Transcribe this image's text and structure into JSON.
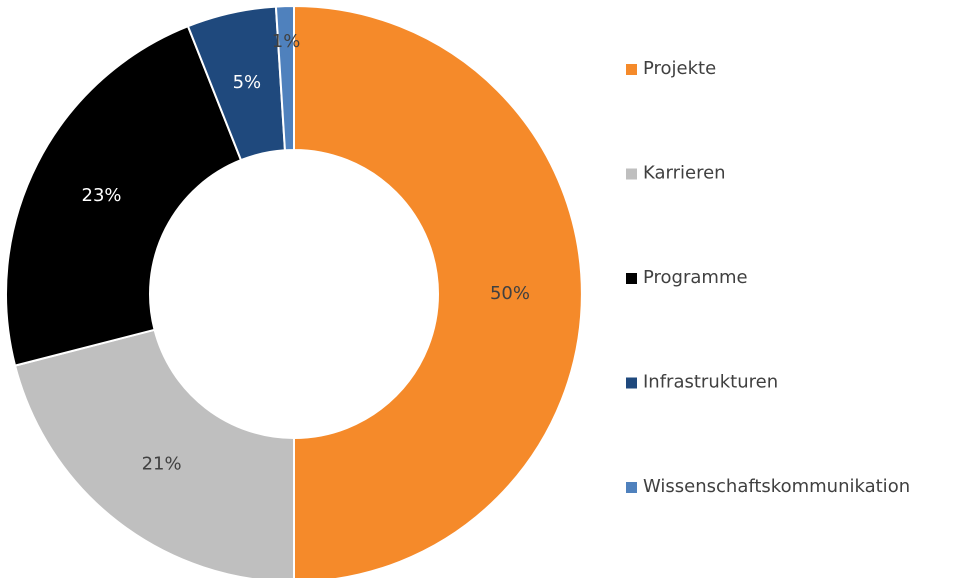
{
  "chart_data": {
    "type": "donut",
    "categories": [
      "Projekte",
      "Karrieren",
      "Programme",
      "Infrastrukturen",
      "Wissenschaftskommunikation"
    ],
    "values": [
      50,
      21,
      23,
      5,
      1
    ],
    "value_labels": [
      "50%",
      "21%",
      "23%",
      "5%",
      "1%"
    ],
    "colors": [
      "#f58a2a",
      "#bfbfbf",
      "#000000",
      "#1f497d",
      "#4f81bd"
    ],
    "legend": "right"
  }
}
